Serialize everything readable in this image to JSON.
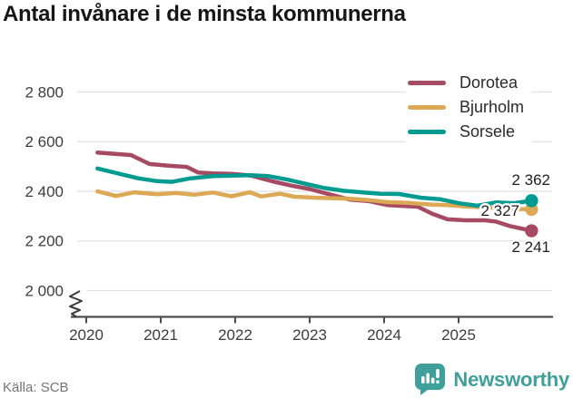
{
  "title": "Antal invånare i de minsta kommunerna",
  "source": "Källa: SCB",
  "branding": {
    "wordmark": "Newsworthy",
    "color": "#3fa09b",
    "icon": "bar-chart-speech-bubble-icon"
  },
  "chart_data": {
    "type": "line",
    "title": "Antal invånare i de minsta kommunerna",
    "xlabel": "",
    "ylabel": "",
    "grid": true,
    "legend_position": "top-right",
    "x_axis": {
      "ticks": [
        {
          "label": "2020",
          "value": 2020
        },
        {
          "label": "2021",
          "value": 2021
        },
        {
          "label": "2022",
          "value": 2022
        },
        {
          "label": "2023",
          "value": 2023
        },
        {
          "label": "2024",
          "value": 2024
        },
        {
          "label": "2025",
          "value": 2025
        }
      ]
    },
    "y_axis": {
      "ticks": [
        {
          "label": "2 000",
          "value": 2000
        },
        {
          "label": "2 200",
          "value": 2200
        },
        {
          "label": "2 400",
          "value": 2400
        },
        {
          "label": "2 600",
          "value": 2600
        },
        {
          "label": "2 800",
          "value": 2800
        }
      ],
      "range": [
        2000,
        2800
      ],
      "axis_break_below": true
    },
    "series": [
      {
        "name": "Dorotea",
        "color": "#a64a63",
        "end_label": "2 241",
        "final_value": 2241,
        "points": [
          [
            2020.15,
            2556
          ],
          [
            2020.6,
            2546
          ],
          [
            2020.85,
            2510
          ],
          [
            2021.1,
            2503
          ],
          [
            2021.35,
            2498
          ],
          [
            2021.5,
            2476
          ],
          [
            2021.7,
            2472
          ],
          [
            2021.95,
            2470
          ],
          [
            2022.2,
            2464
          ],
          [
            2022.5,
            2440
          ],
          [
            2022.75,
            2423
          ],
          [
            2023.0,
            2409
          ],
          [
            2023.3,
            2385
          ],
          [
            2023.55,
            2366
          ],
          [
            2023.8,
            2360
          ],
          [
            2024.05,
            2344
          ],
          [
            2024.3,
            2340
          ],
          [
            2024.45,
            2338
          ],
          [
            2024.65,
            2309
          ],
          [
            2024.85,
            2287
          ],
          [
            2025.1,
            2283
          ],
          [
            2025.35,
            2283
          ],
          [
            2025.5,
            2278
          ],
          [
            2025.7,
            2259
          ],
          [
            2025.98,
            2241
          ]
        ]
      },
      {
        "name": "Bjurholm",
        "color": "#dca854",
        "end_label": "2 327",
        "final_value": 2327,
        "points": [
          [
            2020.15,
            2400
          ],
          [
            2020.4,
            2381
          ],
          [
            2020.65,
            2396
          ],
          [
            2020.95,
            2388
          ],
          [
            2021.2,
            2393
          ],
          [
            2021.45,
            2386
          ],
          [
            2021.7,
            2395
          ],
          [
            2021.95,
            2380
          ],
          [
            2022.2,
            2396
          ],
          [
            2022.35,
            2379
          ],
          [
            2022.6,
            2390
          ],
          [
            2022.8,
            2378
          ],
          [
            2023.1,
            2374
          ],
          [
            2023.55,
            2370
          ],
          [
            2023.8,
            2364
          ],
          [
            2024.05,
            2356
          ],
          [
            2024.3,
            2354
          ],
          [
            2024.6,
            2347
          ],
          [
            2024.85,
            2344
          ],
          [
            2025.1,
            2339
          ],
          [
            2025.35,
            2335
          ],
          [
            2025.6,
            2331
          ],
          [
            2025.98,
            2327
          ]
        ]
      },
      {
        "name": "Sorsele",
        "color": "#009b90",
        "end_label": "2 362",
        "final_value": 2362,
        "points": [
          [
            2020.15,
            2492
          ],
          [
            2020.45,
            2470
          ],
          [
            2020.7,
            2452
          ],
          [
            2020.95,
            2441
          ],
          [
            2021.15,
            2438
          ],
          [
            2021.4,
            2452
          ],
          [
            2021.7,
            2461
          ],
          [
            2021.95,
            2463
          ],
          [
            2022.2,
            2465
          ],
          [
            2022.45,
            2461
          ],
          [
            2022.7,
            2447
          ],
          [
            2022.95,
            2430
          ],
          [
            2023.2,
            2413
          ],
          [
            2023.45,
            2402
          ],
          [
            2023.7,
            2396
          ],
          [
            2023.95,
            2390
          ],
          [
            2024.2,
            2389
          ],
          [
            2024.5,
            2374
          ],
          [
            2024.75,
            2368
          ],
          [
            2025.0,
            2352
          ],
          [
            2025.25,
            2342
          ],
          [
            2025.5,
            2355
          ],
          [
            2025.75,
            2352
          ],
          [
            2025.98,
            2362
          ]
        ]
      }
    ]
  }
}
